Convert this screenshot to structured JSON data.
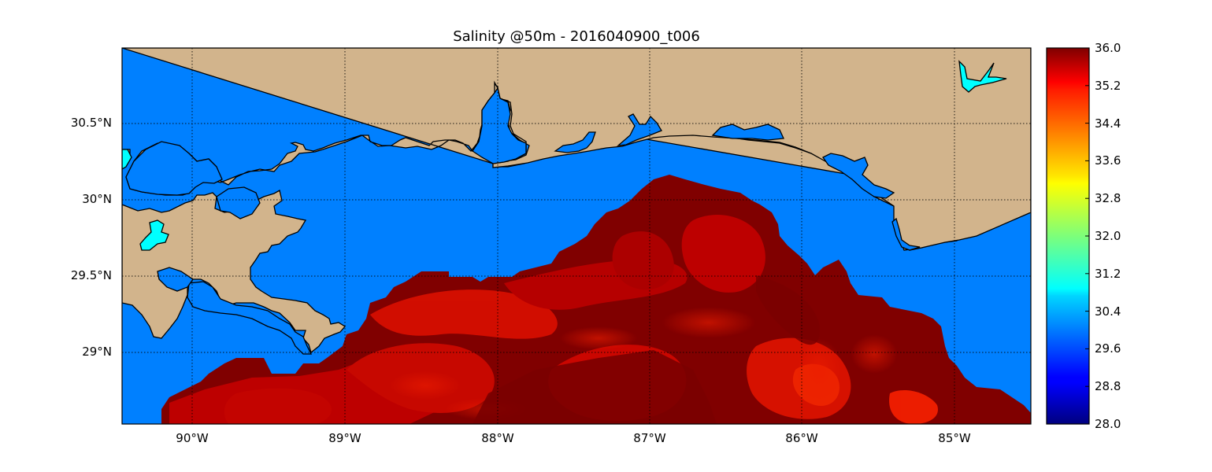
{
  "title": "Salinity @50m - 2016040900_t006",
  "map": {
    "lat_ticks": [
      "30.5°N",
      "30°N",
      "29.5°N",
      "29°N"
    ],
    "lon_ticks": [
      "90°W",
      "89°W",
      "88°W",
      "87°W",
      "86°W",
      "85°W"
    ],
    "colors": {
      "land": "#d2b48c",
      "water_low_salinity": "#0080ff",
      "lake": "#00ffff",
      "high_salinity": "#b00000",
      "max_salinity": "#800000"
    },
    "grid": true
  },
  "colorbar": {
    "labels": [
      "36.0",
      "35.2",
      "34.4",
      "33.6",
      "32.8",
      "32.0",
      "31.2",
      "30.4",
      "29.6",
      "28.8",
      "28.0"
    ],
    "colormap": "jet",
    "min": 28.0,
    "max": 36.0
  }
}
